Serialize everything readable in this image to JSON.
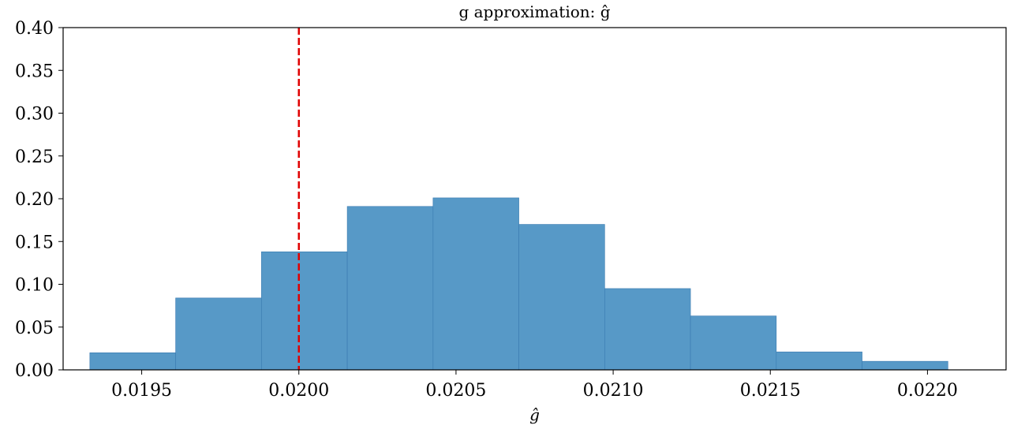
{
  "chart_data": {
    "type": "bar",
    "title": "g approximation: ĝ",
    "xlabel": "ĝ",
    "ylabel": "",
    "xlim": [
      0.01925,
      0.02225
    ],
    "ylim": [
      0.0,
      0.4
    ],
    "xticks": [
      "0.0195",
      "0.0200",
      "0.0205",
      "0.0210",
      "0.0215",
      "0.0220"
    ],
    "xtick_values": [
      0.0195,
      0.02,
      0.0205,
      0.021,
      0.0215,
      0.022
    ],
    "yticks": [
      "0.00",
      "0.05",
      "0.10",
      "0.15",
      "0.20",
      "0.25",
      "0.30",
      "0.35",
      "0.40"
    ],
    "ytick_values": [
      0.0,
      0.05,
      0.1,
      0.15,
      0.2,
      0.25,
      0.3,
      0.35,
      0.4
    ],
    "bin_edges": [
      0.019335,
      0.019608,
      0.019881,
      0.020154,
      0.020427,
      0.0207,
      0.020973,
      0.021246,
      0.021519,
      0.021792,
      0.022065
    ],
    "values": [
      0.02,
      0.084,
      0.138,
      0.191,
      0.201,
      0.17,
      0.095,
      0.063,
      0.021,
      0.01
    ],
    "reference_line": {
      "x": 0.02,
      "color": "#e00000",
      "style": "dashed"
    },
    "bar_color": "#5799c7",
    "bar_edge_color": "#3a7ab0",
    "grid": false
  }
}
